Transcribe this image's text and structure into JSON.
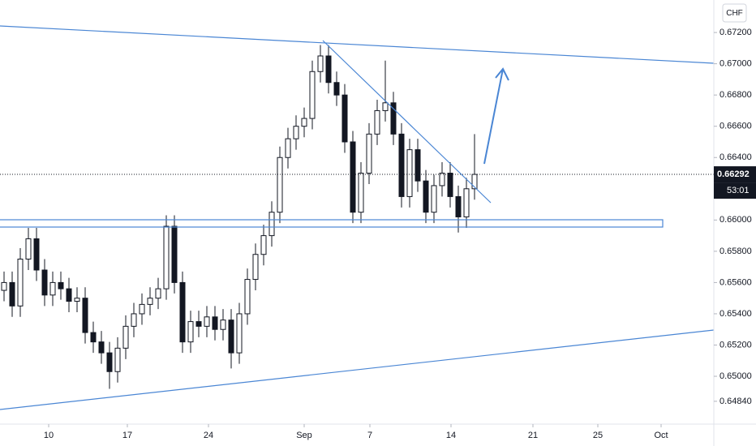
{
  "chart_data": {
    "type": "candlestick",
    "currency": "CHF",
    "last_price_label": "0.66292",
    "countdown": "53:01",
    "color": "#131722",
    "x": [
      0.25,
      0.75,
      1.25,
      1.75,
      2.25,
      2.75,
      3.25,
      3.75,
      4.25,
      4.75,
      5.25,
      5.75,
      6.25,
      6.75,
      7.25,
      7.75,
      8.25,
      8.75,
      9.25,
      9.75,
      10.25,
      10.75,
      11.25,
      11.75,
      12.25,
      12.75,
      13.25,
      13.75,
      14.25,
      14.75,
      15.25,
      15.75,
      16.25,
      16.75,
      17.25,
      17.75,
      18.25,
      18.75,
      19.25,
      19.75,
      20.25,
      20.75,
      21.25,
      21.75,
      22.25,
      22.75,
      23.25,
      23.75,
      24.25,
      24.75,
      25.25,
      25.75,
      26.25,
      26.75,
      27.25,
      27.75,
      28.25,
      28.75,
      29.25
    ],
    "open": [
      0.6555,
      0.656,
      0.6545,
      0.6575,
      0.6588,
      0.6568,
      0.6552,
      0.656,
      0.6556,
      0.6548,
      0.655,
      0.6528,
      0.6522,
      0.6515,
      0.6503,
      0.6518,
      0.6532,
      0.654,
      0.6546,
      0.655,
      0.6556,
      0.6596,
      0.656,
      0.6522,
      0.6535,
      0.6532,
      0.6538,
      0.653,
      0.6536,
      0.6515,
      0.654,
      0.6562,
      0.6578,
      0.659,
      0.6605,
      0.664,
      0.6652,
      0.666,
      0.6665,
      0.6695,
      0.6705,
      0.6688,
      0.668,
      0.665,
      0.6605,
      0.663,
      0.6655,
      0.667,
      0.6675,
      0.6655,
      0.6615,
      0.6645,
      0.6625,
      0.6605,
      0.6622,
      0.663,
      0.6615,
      0.6602,
      0.662
    ],
    "high": [
      0.6567,
      0.6567,
      0.6582,
      0.6595,
      0.6595,
      0.6575,
      0.6567,
      0.6567,
      0.6563,
      0.6557,
      0.6557,
      0.6535,
      0.6529,
      0.6522,
      0.6525,
      0.6539,
      0.6547,
      0.6553,
      0.6557,
      0.6563,
      0.6603,
      0.6603,
      0.6567,
      0.6542,
      0.6542,
      0.6545,
      0.6545,
      0.6543,
      0.6543,
      0.6547,
      0.6569,
      0.6585,
      0.6597,
      0.6612,
      0.6647,
      0.6659,
      0.6667,
      0.6672,
      0.6702,
      0.6712,
      0.6712,
      0.6695,
      0.6687,
      0.6657,
      0.6637,
      0.6662,
      0.6677,
      0.6702,
      0.6682,
      0.6662,
      0.6652,
      0.6652,
      0.6632,
      0.6629,
      0.6637,
      0.6637,
      0.6622,
      0.6627,
      0.6655
    ],
    "low": [
      0.6548,
      0.6538,
      0.6538,
      0.6568,
      0.6561,
      0.6545,
      0.6545,
      0.6549,
      0.6541,
      0.6541,
      0.6521,
      0.6515,
      0.6508,
      0.6492,
      0.6496,
      0.6511,
      0.6525,
      0.6533,
      0.6539,
      0.6543,
      0.6549,
      0.6553,
      0.6515,
      0.6515,
      0.6525,
      0.6525,
      0.6523,
      0.6523,
      0.6505,
      0.6508,
      0.6533,
      0.6555,
      0.6571,
      0.6583,
      0.6598,
      0.6633,
      0.6645,
      0.6653,
      0.6658,
      0.6688,
      0.6681,
      0.6673,
      0.6643,
      0.6598,
      0.6598,
      0.6623,
      0.6648,
      0.6663,
      0.6648,
      0.6608,
      0.6608,
      0.6618,
      0.6598,
      0.6598,
      0.6615,
      0.6608,
      0.6592,
      0.6595,
      0.6613
    ],
    "close": [
      0.656,
      0.6545,
      0.6575,
      0.6588,
      0.6568,
      0.6552,
      0.656,
      0.6556,
      0.6548,
      0.655,
      0.6528,
      0.6522,
      0.6515,
      0.6503,
      0.6518,
      0.6532,
      0.654,
      0.6546,
      0.655,
      0.6556,
      0.6596,
      0.656,
      0.6522,
      0.6535,
      0.6532,
      0.6538,
      0.653,
      0.6536,
      0.6515,
      0.654,
      0.6562,
      0.6578,
      0.659,
      0.6605,
      0.664,
      0.6652,
      0.666,
      0.6665,
      0.6695,
      0.6705,
      0.6688,
      0.668,
      0.665,
      0.6605,
      0.663,
      0.6655,
      0.667,
      0.6675,
      0.6655,
      0.6615,
      0.6645,
      0.6625,
      0.6605,
      0.6622,
      0.663,
      0.6615,
      0.6602,
      0.662,
      0.66292
    ],
    "xlim": [
      0,
      44
    ],
    "xticks": [
      {
        "value": 3,
        "label": "10"
      },
      {
        "value": 7.85,
        "label": "17"
      },
      {
        "value": 12.85,
        "label": "24"
      },
      {
        "value": 18.75,
        "label": "Sep"
      },
      {
        "value": 22.8,
        "label": "7"
      },
      {
        "value": 27.8,
        "label": "14"
      },
      {
        "value": 32.85,
        "label": "21"
      },
      {
        "value": 36.85,
        "label": "25"
      },
      {
        "value": 40.75,
        "label": "Oct"
      }
    ],
    "ylim": [
      0.64694,
      0.67408
    ],
    "yticks": [
      {
        "value": 0.672,
        "label": "0.67200"
      },
      {
        "value": 0.67,
        "label": "0.67000"
      },
      {
        "value": 0.668,
        "label": "0.66800"
      },
      {
        "value": 0.666,
        "label": "0.66600"
      },
      {
        "value": 0.664,
        "label": "0.66400"
      },
      {
        "value": 0.66,
        "label": "0.66000"
      },
      {
        "value": 0.658,
        "label": "0.65800"
      },
      {
        "value": 0.656,
        "label": "0.65600"
      },
      {
        "value": 0.654,
        "label": "0.65400"
      },
      {
        "value": 0.652,
        "label": "0.65200"
      },
      {
        "value": 0.65,
        "label": "0.65000"
      },
      {
        "value": 0.6484,
        "label": "0.64840"
      }
    ]
  }
}
